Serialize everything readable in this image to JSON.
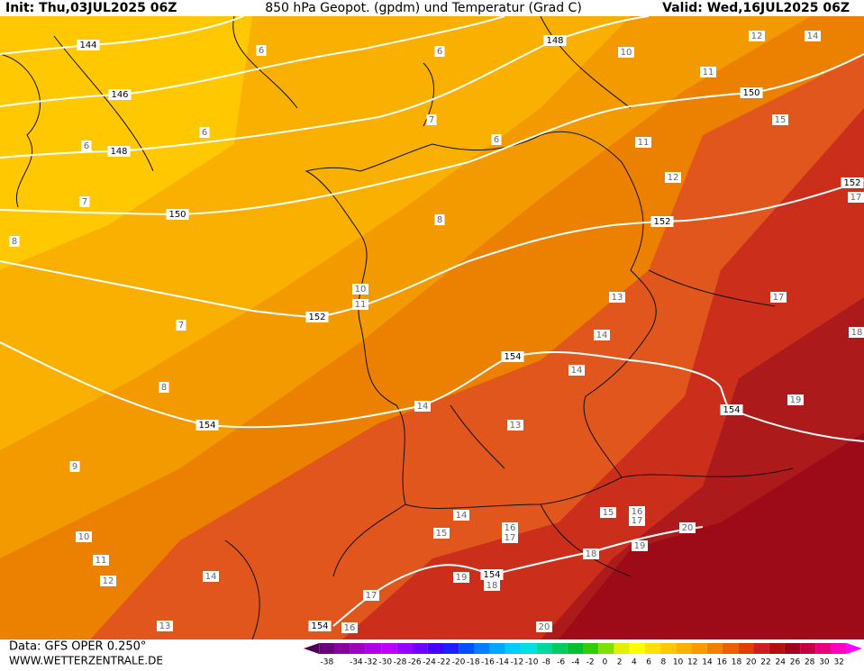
{
  "header": {
    "init": "Init: Thu,03JUL2025 06Z",
    "title": "850 hPa Geopot. (gpdm) und Temperatur (Grad C)",
    "valid": "Valid: Wed,16JUL2025 06Z"
  },
  "footer": {
    "data": "Data: GFS OPER 0.250°",
    "site": "WWW.WETTERZENTRALE.DE"
  },
  "geopotential_labels": [
    144,
    146,
    148,
    150,
    152,
    154,
    148,
    150,
    152,
    154,
    154,
    152,
    154,
    154
  ],
  "temperature_labels": [
    6,
    6,
    10,
    12,
    14,
    11,
    6,
    6,
    7,
    6,
    11,
    12,
    15,
    17,
    7,
    8,
    8,
    10,
    11,
    13,
    17,
    7,
    14,
    18,
    14,
    8,
    14,
    19,
    13,
    9,
    14,
    15,
    16,
    17,
    20,
    15,
    16,
    17,
    10,
    11,
    18,
    19,
    12,
    14,
    19,
    18,
    17,
    13,
    16,
    20
  ],
  "color_scale": {
    "labels": [
      -38,
      -34,
      -32,
      -30,
      -28,
      -26,
      -24,
      -22,
      -20,
      -18,
      -16,
      -14,
      -12,
      -10,
      -8,
      -6,
      -4,
      -2,
      0,
      2,
      4,
      6,
      8,
      10,
      12,
      14,
      16,
      18,
      20,
      22,
      24,
      26,
      28,
      30,
      32
    ],
    "colors": [
      "#4b0055",
      "#6a0080",
      "#8a00a0",
      "#a000c0",
      "#b000e0",
      "#c000ff",
      "#9a00ff",
      "#7000ff",
      "#4400ff",
      "#1e1eff",
      "#0050ff",
      "#0080ff",
      "#00a8ff",
      "#00ccff",
      "#00e0e0",
      "#00d8a0",
      "#00cc60",
      "#00c030",
      "#30d000",
      "#80e000",
      "#e0f000",
      "#ffff00",
      "#ffe000",
      "#ffc800",
      "#ffb000",
      "#ff9800",
      "#f08000",
      "#e86000",
      "#dd4000",
      "#c82020",
      "#b01010",
      "#a00020",
      "#c00040",
      "#e00080",
      "#ff00c0",
      "#ff00ff"
    ]
  }
}
